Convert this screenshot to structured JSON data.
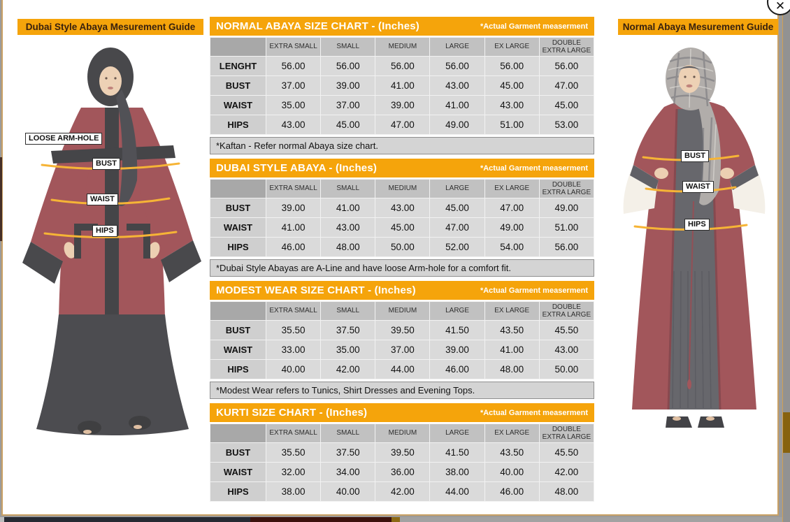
{
  "close": {
    "icon": "✕"
  },
  "left_guide": {
    "title": "Dubai Style Abaya Mesurement Guide",
    "labels": {
      "armhole": "LOOSE ARM-HOLE",
      "bust": "BUST",
      "waist": "WAIST",
      "hips": "HIPS"
    }
  },
  "right_guide": {
    "title": "Normal Abaya Mesurement Guide",
    "labels": {
      "bust": "BUST",
      "waist": "WAIST",
      "hips": "HIPS"
    }
  },
  "colors": {
    "accent_orange": "#f5a40b",
    "header_gray": "#c1c1c1",
    "cell_gray": "#dadada",
    "abaya_maroon": "#8e3138",
    "border_tan": "#c9a063"
  },
  "charts": [
    {
      "title": "NORMAL ABAYA SIZE CHART - (Inches)",
      "note": "*Actual Garment measerment",
      "columns": [
        "EXTRA SMALL",
        "SMALL",
        "MEDIUM",
        "LARGE",
        "EX LARGE",
        "DOUBLE EXTRA LARGE"
      ],
      "rows": [
        {
          "label": "LENGHT",
          "values": [
            "56.00",
            "56.00",
            "56.00",
            "56.00",
            "56.00",
            "56.00"
          ]
        },
        {
          "label": "BUST",
          "values": [
            "37.00",
            "39.00",
            "41.00",
            "43.00",
            "45.00",
            "47.00"
          ]
        },
        {
          "label": "WAIST",
          "values": [
            "35.00",
            "37.00",
            "39.00",
            "41.00",
            "43.00",
            "45.00"
          ]
        },
        {
          "label": "HIPS",
          "values": [
            "43.00",
            "45.00",
            "47.00",
            "49.00",
            "51.00",
            "53.00"
          ]
        }
      ],
      "footnote": "*Kaftan - Refer normal Abaya size chart."
    },
    {
      "title": "DUBAI STYLE ABAYA - (Inches)",
      "note": "*Actual Garment measerment",
      "columns": [
        "EXTRA SMALL",
        "SMALL",
        "MEDIUM",
        "LARGE",
        "EX LARGE",
        "DOUBLE EXTRA LARGE"
      ],
      "rows": [
        {
          "label": "BUST",
          "values": [
            "39.00",
            "41.00",
            "43.00",
            "45.00",
            "47.00",
            "49.00"
          ]
        },
        {
          "label": "WAIST",
          "values": [
            "41.00",
            "43.00",
            "45.00",
            "47.00",
            "49.00",
            "51.00"
          ]
        },
        {
          "label": "HIPS",
          "values": [
            "46.00",
            "48.00",
            "50.00",
            "52.00",
            "54.00",
            "56.00"
          ]
        }
      ],
      "footnote": "*Dubai Style Abayas are A-Line and have loose Arm-hole for a comfort fit."
    },
    {
      "title": "MODEST WEAR SIZE CHART - (Inches)",
      "note": "*Actual Garment measerment",
      "columns": [
        "EXTRA SMALL",
        "SMALL",
        "MEDIUM",
        "LARGE",
        "EX LARGE",
        "DOUBLE EXTRA LARGE"
      ],
      "rows": [
        {
          "label": "BUST",
          "values": [
            "35.50",
            "37.50",
            "39.50",
            "41.50",
            "43.50",
            "45.50"
          ]
        },
        {
          "label": "WAIST",
          "values": [
            "33.00",
            "35.00",
            "37.00",
            "39.00",
            "41.00",
            "43.00"
          ]
        },
        {
          "label": "HIPS",
          "values": [
            "40.00",
            "42.00",
            "44.00",
            "46.00",
            "48.00",
            "50.00"
          ]
        }
      ],
      "footnote": "*Modest Wear refers to Tunics, Shirt Dresses and Evening Tops."
    },
    {
      "title": "KURTI SIZE CHART - (Inches)",
      "note": "*Actual Garment measerment",
      "columns": [
        "EXTRA SMALL",
        "SMALL",
        "MEDIUM",
        "LARGE",
        "EX LARGE",
        "DOUBLE EXTRA LARGE"
      ],
      "rows": [
        {
          "label": "BUST",
          "values": [
            "35.50",
            "37.50",
            "39.50",
            "41.50",
            "43.50",
            "45.50"
          ]
        },
        {
          "label": "WAIST",
          "values": [
            "32.00",
            "34.00",
            "36.00",
            "38.00",
            "40.00",
            "42.00"
          ]
        },
        {
          "label": "HIPS",
          "values": [
            "38.00",
            "40.00",
            "42.00",
            "44.00",
            "46.00",
            "48.00"
          ]
        }
      ],
      "footnote": null
    }
  ]
}
